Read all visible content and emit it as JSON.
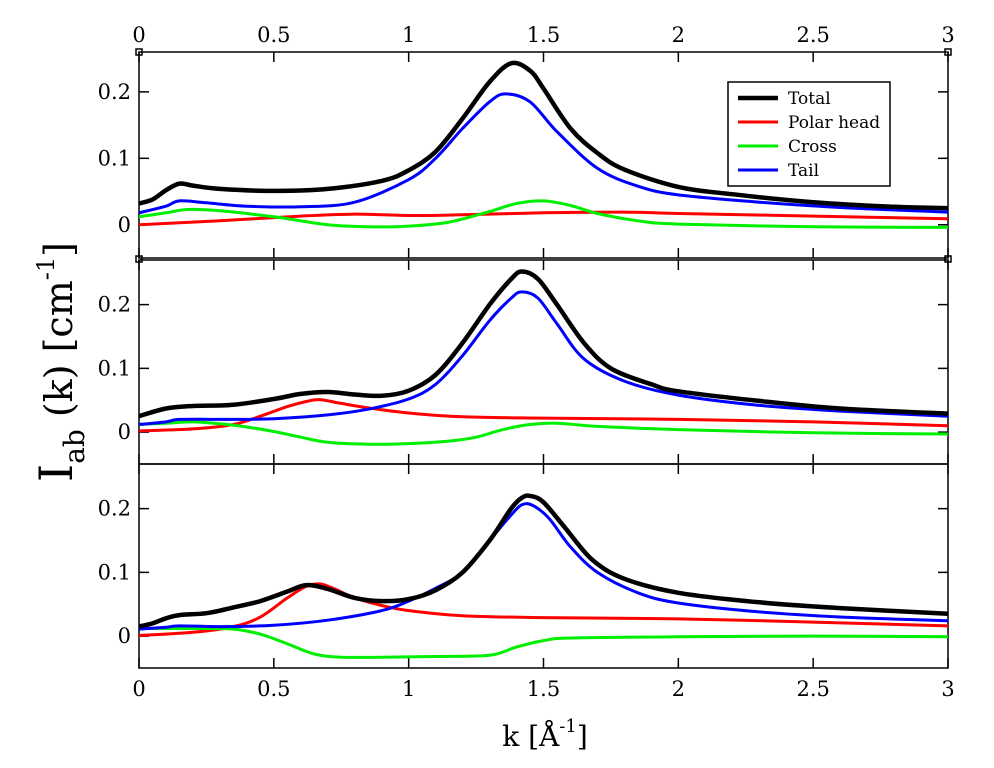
{
  "chart_data": [
    {
      "type": "line",
      "panel": "top",
      "xlim": [
        0,
        3
      ],
      "ylim": [
        -0.05,
        0.26
      ],
      "yticks": [
        0,
        0.1,
        0.2
      ],
      "ytick_labels": [
        "0",
        "0.1",
        "0.2"
      ],
      "top_xtick_labels": [
        "0",
        "0.5",
        "1",
        "1.5",
        "2",
        "2.5",
        "3"
      ],
      "legend": [
        "Total",
        "Polar head",
        "Cross",
        "Tail"
      ],
      "legend_position": "top-right",
      "series": [
        {
          "name": "Total",
          "color": "#000000",
          "points": [
            [
              0,
              0.032
            ],
            [
              0.05,
              0.038
            ],
            [
              0.1,
              0.052
            ],
            [
              0.15,
              0.062
            ],
            [
              0.2,
              0.059
            ],
            [
              0.3,
              0.054
            ],
            [
              0.5,
              0.051
            ],
            [
              0.7,
              0.054
            ],
            [
              0.9,
              0.066
            ],
            [
              1.0,
              0.082
            ],
            [
              1.1,
              0.11
            ],
            [
              1.2,
              0.16
            ],
            [
              1.3,
              0.215
            ],
            [
              1.38,
              0.243
            ],
            [
              1.45,
              0.232
            ],
            [
              1.5,
              0.205
            ],
            [
              1.6,
              0.145
            ],
            [
              1.7,
              0.108
            ],
            [
              1.8,
              0.083
            ],
            [
              2.0,
              0.057
            ],
            [
              2.2,
              0.046
            ],
            [
              2.5,
              0.034
            ],
            [
              2.8,
              0.027
            ],
            [
              3.0,
              0.025
            ]
          ]
        },
        {
          "name": "Polar head",
          "color": "#ff0000",
          "points": [
            [
              0,
              0
            ],
            [
              0.3,
              0.006
            ],
            [
              0.6,
              0.013
            ],
            [
              0.8,
              0.016
            ],
            [
              1.0,
              0.014
            ],
            [
              1.2,
              0.015
            ],
            [
              1.5,
              0.018
            ],
            [
              1.8,
              0.019
            ],
            [
              2.0,
              0.017
            ],
            [
              2.5,
              0.013
            ],
            [
              3.0,
              0.009
            ]
          ]
        },
        {
          "name": "Cross",
          "color": "#00ee00",
          "points": [
            [
              0,
              0.012
            ],
            [
              0.1,
              0.018
            ],
            [
              0.18,
              0.023
            ],
            [
              0.3,
              0.021
            ],
            [
              0.5,
              0.012
            ],
            [
              0.7,
              0.0
            ],
            [
              0.85,
              -0.003
            ],
            [
              1.0,
              -0.002
            ],
            [
              1.15,
              0.004
            ],
            [
              1.3,
              0.02
            ],
            [
              1.4,
              0.032
            ],
            [
              1.5,
              0.036
            ],
            [
              1.6,
              0.029
            ],
            [
              1.7,
              0.017
            ],
            [
              1.85,
              0.006
            ],
            [
              2.0,
              0.001
            ],
            [
              2.5,
              -0.003
            ],
            [
              3.0,
              -0.004
            ]
          ]
        },
        {
          "name": "Tail",
          "color": "#0000ff",
          "points": [
            [
              0,
              0.018
            ],
            [
              0.1,
              0.028
            ],
            [
              0.15,
              0.036
            ],
            [
              0.25,
              0.033
            ],
            [
              0.4,
              0.028
            ],
            [
              0.6,
              0.027
            ],
            [
              0.8,
              0.034
            ],
            [
              1.0,
              0.068
            ],
            [
              1.1,
              0.1
            ],
            [
              1.2,
              0.145
            ],
            [
              1.3,
              0.185
            ],
            [
              1.36,
              0.197
            ],
            [
              1.45,
              0.185
            ],
            [
              1.55,
              0.14
            ],
            [
              1.7,
              0.085
            ],
            [
              1.85,
              0.058
            ],
            [
              2.0,
              0.045
            ],
            [
              2.3,
              0.034
            ],
            [
              2.6,
              0.026
            ],
            [
              3.0,
              0.019
            ]
          ]
        }
      ]
    },
    {
      "type": "line",
      "panel": "middle",
      "xlim": [
        0,
        3
      ],
      "ylim": [
        -0.05,
        0.27
      ],
      "yticks": [
        0,
        0.1,
        0.2
      ],
      "ytick_labels": [
        "0",
        "0.1",
        "0.2"
      ],
      "series": [
        {
          "name": "Total",
          "color": "#000000",
          "points": [
            [
              0,
              0.025
            ],
            [
              0.1,
              0.037
            ],
            [
              0.2,
              0.041
            ],
            [
              0.35,
              0.043
            ],
            [
              0.5,
              0.052
            ],
            [
              0.6,
              0.06
            ],
            [
              0.7,
              0.063
            ],
            [
              0.8,
              0.059
            ],
            [
              0.9,
              0.057
            ],
            [
              1.0,
              0.065
            ],
            [
              1.1,
              0.09
            ],
            [
              1.2,
              0.14
            ],
            [
              1.3,
              0.2
            ],
            [
              1.38,
              0.24
            ],
            [
              1.42,
              0.252
            ],
            [
              1.48,
              0.24
            ],
            [
              1.55,
              0.2
            ],
            [
              1.65,
              0.14
            ],
            [
              1.75,
              0.1
            ],
            [
              1.9,
              0.075
            ],
            [
              2.0,
              0.064
            ],
            [
              2.3,
              0.049
            ],
            [
              2.6,
              0.037
            ],
            [
              3.0,
              0.029
            ]
          ]
        },
        {
          "name": "Polar head",
          "color": "#ff0000",
          "points": [
            [
              0,
              0.002
            ],
            [
              0.2,
              0.005
            ],
            [
              0.35,
              0.012
            ],
            [
              0.45,
              0.025
            ],
            [
              0.55,
              0.04
            ],
            [
              0.62,
              0.048
            ],
            [
              0.67,
              0.051
            ],
            [
              0.75,
              0.045
            ],
            [
              0.85,
              0.038
            ],
            [
              1.0,
              0.03
            ],
            [
              1.2,
              0.024
            ],
            [
              1.5,
              0.022
            ],
            [
              2.0,
              0.02
            ],
            [
              2.5,
              0.016
            ],
            [
              3.0,
              0.01
            ]
          ]
        },
        {
          "name": "Cross",
          "color": "#00ee00",
          "points": [
            [
              0,
              0.012
            ],
            [
              0.1,
              0.014
            ],
            [
              0.2,
              0.016
            ],
            [
              0.3,
              0.013
            ],
            [
              0.4,
              0.008
            ],
            [
              0.5,
              0.001
            ],
            [
              0.6,
              -0.008
            ],
            [
              0.7,
              -0.016
            ],
            [
              0.85,
              -0.019
            ],
            [
              1.0,
              -0.018
            ],
            [
              1.15,
              -0.014
            ],
            [
              1.25,
              -0.008
            ],
            [
              1.35,
              0.004
            ],
            [
              1.45,
              0.012
            ],
            [
              1.55,
              0.014
            ],
            [
              1.7,
              0.009
            ],
            [
              2.0,
              0.004
            ],
            [
              2.5,
              -0.001
            ],
            [
              3.0,
              -0.003
            ]
          ]
        },
        {
          "name": "Tail",
          "color": "#0000ff",
          "points": [
            [
              0,
              0.012
            ],
            [
              0.1,
              0.016
            ],
            [
              0.15,
              0.02
            ],
            [
              0.3,
              0.02
            ],
            [
              0.5,
              0.021
            ],
            [
              0.7,
              0.027
            ],
            [
              0.85,
              0.036
            ],
            [
              1.0,
              0.052
            ],
            [
              1.1,
              0.075
            ],
            [
              1.2,
              0.12
            ],
            [
              1.3,
              0.175
            ],
            [
              1.38,
              0.21
            ],
            [
              1.42,
              0.22
            ],
            [
              1.48,
              0.21
            ],
            [
              1.55,
              0.17
            ],
            [
              1.65,
              0.115
            ],
            [
              1.8,
              0.08
            ],
            [
              2.0,
              0.058
            ],
            [
              2.3,
              0.042
            ],
            [
              2.6,
              0.033
            ],
            [
              3.0,
              0.025
            ]
          ]
        }
      ]
    },
    {
      "type": "line",
      "panel": "bottom",
      "xlim": [
        0,
        3
      ],
      "ylim": [
        -0.05,
        0.27
      ],
      "yticks": [
        0,
        0.1,
        0.2
      ],
      "ytick_labels": [
        "0",
        "0.1",
        "0.2"
      ],
      "xticks": [
        0,
        0.5,
        1,
        1.5,
        2,
        2.5,
        3
      ],
      "xtick_labels": [
        "0",
        "0.5",
        "1",
        "1.5",
        "2",
        "2.5",
        "3"
      ],
      "xlabel_main": "k [Å",
      "xlabel_sup": "-1",
      "xlabel_end": "]",
      "ylabel_main": "I",
      "ylabel_sub": "ab",
      "ylabel_mid": "(k) [cm",
      "ylabel_sup": "-1",
      "ylabel_end": "]",
      "series": [
        {
          "name": "Total",
          "color": "#000000",
          "points": [
            [
              0,
              0.015
            ],
            [
              0.05,
              0.02
            ],
            [
              0.1,
              0.028
            ],
            [
              0.15,
              0.033
            ],
            [
              0.25,
              0.036
            ],
            [
              0.35,
              0.045
            ],
            [
              0.45,
              0.055
            ],
            [
              0.55,
              0.07
            ],
            [
              0.62,
              0.08
            ],
            [
              0.7,
              0.074
            ],
            [
              0.8,
              0.06
            ],
            [
              0.9,
              0.055
            ],
            [
              1.0,
              0.058
            ],
            [
              1.1,
              0.072
            ],
            [
              1.2,
              0.1
            ],
            [
              1.3,
              0.15
            ],
            [
              1.38,
              0.2
            ],
            [
              1.42,
              0.217
            ],
            [
              1.45,
              0.22
            ],
            [
              1.5,
              0.21
            ],
            [
              1.58,
              0.17
            ],
            [
              1.68,
              0.12
            ],
            [
              1.8,
              0.09
            ],
            [
              2.0,
              0.068
            ],
            [
              2.3,
              0.053
            ],
            [
              2.6,
              0.044
            ],
            [
              3.0,
              0.035
            ]
          ]
        },
        {
          "name": "Polar head",
          "color": "#ff0000",
          "points": [
            [
              0,
              0.001
            ],
            [
              0.2,
              0.006
            ],
            [
              0.35,
              0.015
            ],
            [
              0.45,
              0.03
            ],
            [
              0.55,
              0.06
            ],
            [
              0.62,
              0.078
            ],
            [
              0.67,
              0.082
            ],
            [
              0.72,
              0.075
            ],
            [
              0.8,
              0.06
            ],
            [
              0.9,
              0.048
            ],
            [
              1.0,
              0.04
            ],
            [
              1.2,
              0.032
            ],
            [
              1.5,
              0.029
            ],
            [
              2.0,
              0.027
            ],
            [
              2.5,
              0.022
            ],
            [
              3.0,
              0.016
            ]
          ]
        },
        {
          "name": "Cross",
          "color": "#00ee00",
          "points": [
            [
              0,
              0.012
            ],
            [
              0.2,
              0.012
            ],
            [
              0.35,
              0.011
            ],
            [
              0.45,
              0.003
            ],
            [
              0.55,
              -0.012
            ],
            [
              0.65,
              -0.028
            ],
            [
              0.75,
              -0.033
            ],
            [
              0.9,
              -0.033
            ],
            [
              1.1,
              -0.032
            ],
            [
              1.3,
              -0.03
            ],
            [
              1.4,
              -0.017
            ],
            [
              1.5,
              -0.007
            ],
            [
              1.6,
              -0.003
            ],
            [
              2.0,
              -0.001
            ],
            [
              2.5,
              0
            ],
            [
              3.0,
              -0.001
            ]
          ]
        },
        {
          "name": "Tail",
          "color": "#0000ff",
          "points": [
            [
              0,
              0.011
            ],
            [
              0.1,
              0.014
            ],
            [
              0.15,
              0.016
            ],
            [
              0.3,
              0.015
            ],
            [
              0.5,
              0.017
            ],
            [
              0.7,
              0.025
            ],
            [
              0.9,
              0.04
            ],
            [
              1.0,
              0.055
            ],
            [
              1.1,
              0.075
            ],
            [
              1.2,
              0.1
            ],
            [
              1.3,
              0.15
            ],
            [
              1.38,
              0.19
            ],
            [
              1.42,
              0.206
            ],
            [
              1.46,
              0.205
            ],
            [
              1.52,
              0.185
            ],
            [
              1.6,
              0.14
            ],
            [
              1.7,
              0.1
            ],
            [
              1.85,
              0.068
            ],
            [
              2.0,
              0.052
            ],
            [
              2.3,
              0.038
            ],
            [
              2.6,
              0.03
            ],
            [
              3.0,
              0.024
            ]
          ]
        }
      ]
    }
  ]
}
